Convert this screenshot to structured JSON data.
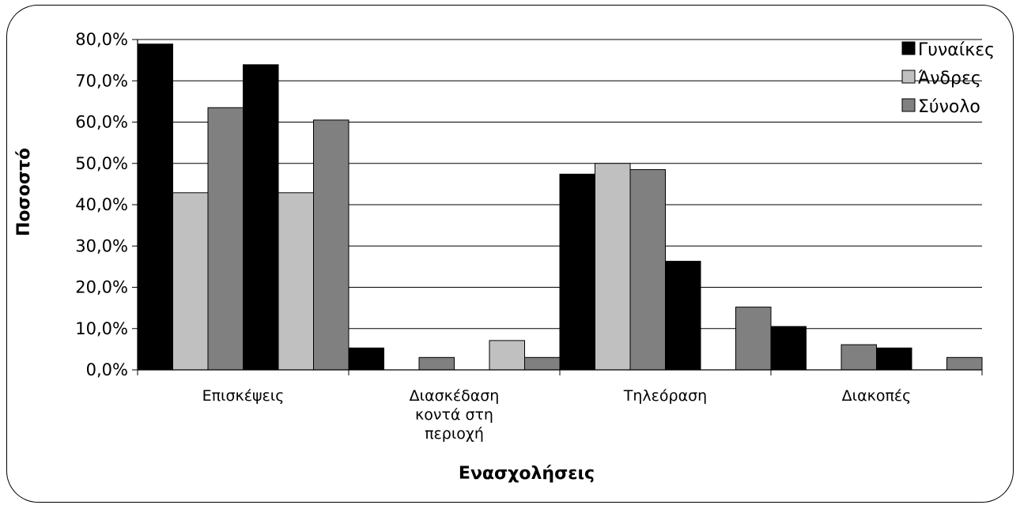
{
  "chart_data": {
    "type": "bar",
    "xlabel": "Ενασχολήσεις",
    "ylabel": "Ποσοστό",
    "ylim": [
      0,
      80
    ],
    "yticks": [
      "0,0%",
      "10,0%",
      "20,0%",
      "30,0%",
      "40,0%",
      "50,0%",
      "60,0%",
      "70,0%",
      "80,0%"
    ],
    "category_labels": [
      [
        "Επισκέψεις"
      ],
      [
        "Διασκέδαση",
        "κοντά στη",
        "περιοχή"
      ],
      [
        "Τηλεόραση"
      ],
      [
        "Διακοπές"
      ]
    ],
    "legend": {
      "position": "right",
      "entries": [
        {
          "label": "Γυναίκες",
          "color": "#000000"
        },
        {
          "label": "Άνδρες",
          "color": "#c0c0c0"
        },
        {
          "label": "Σύνολο",
          "color": "#808080"
        }
      ]
    },
    "bars": [
      {
        "series": "Γυναίκες",
        "value": 78.9
      },
      {
        "series": "Άνδρες",
        "value": 42.9
      },
      {
        "series": "Σύνολο",
        "value": 63.5
      },
      {
        "series": "Γυναίκες",
        "value": 73.9
      },
      {
        "series": "Άνδρες",
        "value": 42.9
      },
      {
        "series": "Σύνολο",
        "value": 60.5
      },
      {
        "series": "Γυναίκες",
        "value": 5.3
      },
      {
        "series": "Άνδρες",
        "value": 0
      },
      {
        "series": "Σύνολο",
        "value": 3.0
      },
      {
        "series": "Γυναίκες",
        "value": 0
      },
      {
        "series": "Άνδρες",
        "value": 7.1
      },
      {
        "series": "Σύνολο",
        "value": 3.0
      },
      {
        "series": "Γυναίκες",
        "value": 47.4
      },
      {
        "series": "Άνδρες",
        "value": 50.0
      },
      {
        "series": "Σύνολο",
        "value": 48.5
      },
      {
        "series": "Γυναίκες",
        "value": 26.3
      },
      {
        "series": "Άνδρες",
        "value": 0
      },
      {
        "series": "Σύνολο",
        "value": 15.2
      },
      {
        "series": "Γυναίκες",
        "value": 10.5
      },
      {
        "series": "Άνδρες",
        "value": 0
      },
      {
        "series": "Σύνολο",
        "value": 6.1
      },
      {
        "series": "Γυναίκες",
        "value": 5.3
      },
      {
        "series": "Άνδρες",
        "value": 0
      },
      {
        "series": "Σύνολο",
        "value": 3.0
      }
    ],
    "grid": true
  }
}
